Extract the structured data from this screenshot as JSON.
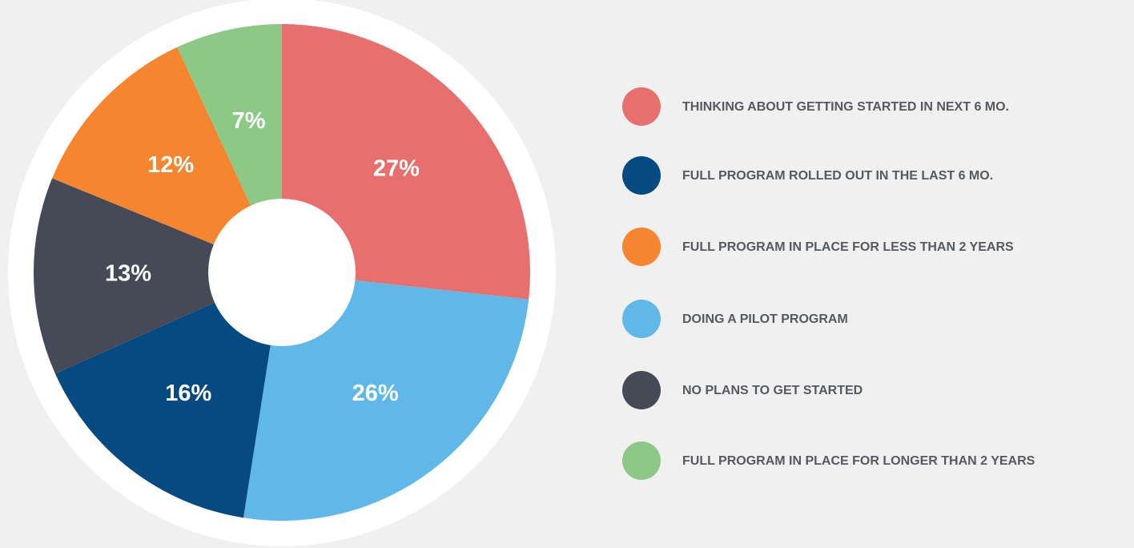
{
  "chart_data": {
    "type": "donut",
    "categories": [
      "THINKING ABOUT GETTING STARTED IN NEXT 6 MO.",
      "DOING A PILOT PROGRAM",
      "FULL PROGRAM ROLLED OUT IN THE LAST 6 MO.",
      "NO PLANS TO GET STARTED",
      "FULL PROGRAM IN PLACE FOR LESS THAN 2 YEARS",
      "FULL PROGRAM IN PLACE FOR LONGER THAN 2 YEARS"
    ],
    "values": [
      27,
      26,
      16,
      13,
      12,
      7
    ],
    "value_labels": [
      "27%",
      "26%",
      "16%",
      "13%",
      "12%",
      "7%"
    ],
    "colors": [
      "#e76f6d",
      "#5fb8e7",
      "#064a82",
      "#464a56",
      "#f5852e",
      "#8dc986"
    ]
  }
}
